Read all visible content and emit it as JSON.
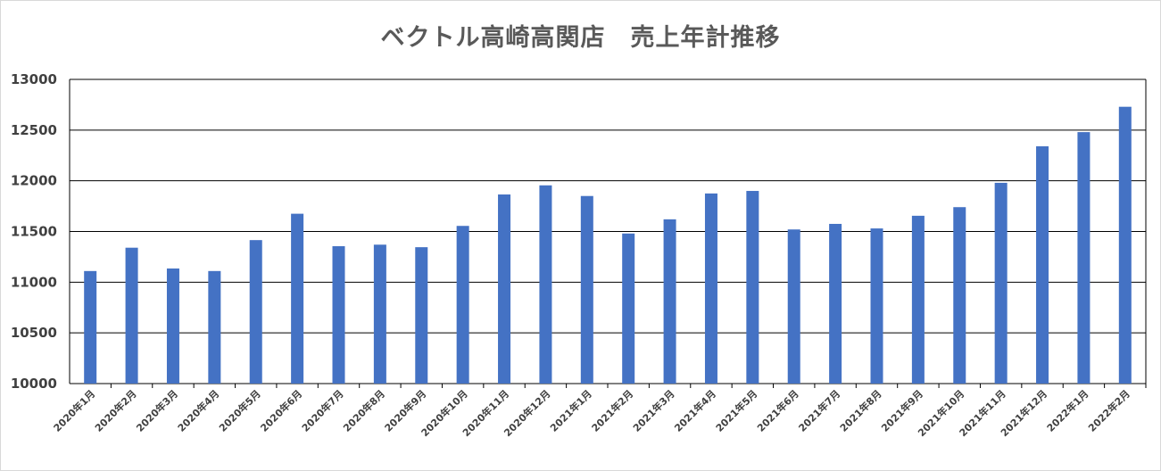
{
  "chart_data": {
    "type": "bar",
    "title": "ベクトル高崎高関店　売上年計推移",
    "xlabel": "",
    "ylabel": "",
    "ylim": [
      10000,
      13000
    ],
    "yticks": [
      10000,
      10500,
      11000,
      11500,
      12000,
      12500,
      13000
    ],
    "grid": true,
    "legend": "none",
    "bar_color": "#4472C4",
    "categories": [
      "2020年1月",
      "2020年2月",
      "2020年3月",
      "2020年4月",
      "2020年5月",
      "2020年6月",
      "2020年7月",
      "2020年8月",
      "2020年9月",
      "2020年10月",
      "2020年11月",
      "2020年12月",
      "2021年1月",
      "2021年2月",
      "2021年3月",
      "2021年4月",
      "2021年5月",
      "2021年6月",
      "2021年7月",
      "2021年8月",
      "2021年9月",
      "2021年10月",
      "2021年11月",
      "2021年12月",
      "2022年1月",
      "2022年2月"
    ],
    "values": [
      11110,
      11340,
      11135,
      11110,
      11415,
      11675,
      11355,
      11370,
      11345,
      11555,
      11865,
      11955,
      11850,
      11480,
      11620,
      11875,
      11900,
      11520,
      11575,
      11530,
      11655,
      11740,
      11980,
      12340,
      12480,
      12730
    ]
  }
}
